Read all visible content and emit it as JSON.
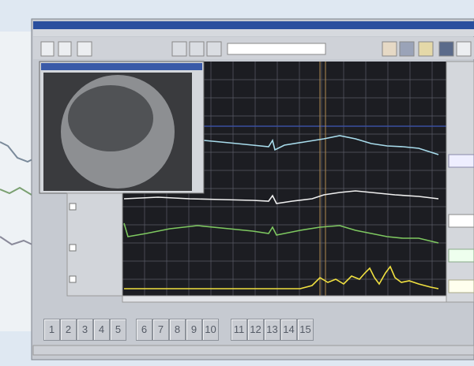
{
  "buttons": [
    [
      "1",
      "2",
      "3",
      "4",
      "5"
    ],
    [
      "6",
      "7",
      "8",
      "9",
      "10"
    ],
    [
      "11",
      "12",
      "13",
      "14",
      "15"
    ]
  ]
}
